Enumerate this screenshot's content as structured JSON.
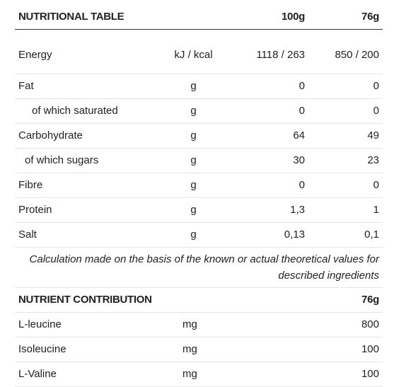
{
  "nutritional_table": {
    "title": "NUTRITIONAL TABLE",
    "col_100g": "100g",
    "col_76g": "76g",
    "rows": [
      {
        "name": "Energy",
        "unit": "kJ / kcal",
        "per100": "1118 / 263",
        "per76": "850 / 200"
      },
      {
        "name": "Fat",
        "unit": "g",
        "per100": "0",
        "per76": "0"
      },
      {
        "name": "of which saturated",
        "unit": "g",
        "per100": "0",
        "per76": "0"
      },
      {
        "name": "Carbohydrate",
        "unit": "g",
        "per100": "64",
        "per76": "49"
      },
      {
        "name": "of which sugars",
        "unit": "g",
        "per100": "30",
        "per76": "23"
      },
      {
        "name": "Fibre",
        "unit": "g",
        "per100": "0",
        "per76": "0"
      },
      {
        "name": "Protein",
        "unit": "g",
        "per100": "1,3",
        "per76": "1"
      },
      {
        "name": "Salt",
        "unit": "g",
        "per100": "0,13",
        "per76": "0,1"
      }
    ],
    "note": "Calculation made on the basis of the known or actual theoretical values for described ingredients"
  },
  "nutrient_contribution": {
    "title": "NUTRIENT CONTRIBUTION",
    "col_76g": "76g",
    "rows": [
      {
        "name": "L-leucine",
        "unit": "mg",
        "per76": "800"
      },
      {
        "name": "Isoleucine",
        "unit": "mg",
        "per76": "100"
      },
      {
        "name": "L-Valine",
        "unit": "mg",
        "per76": "100"
      }
    ]
  }
}
